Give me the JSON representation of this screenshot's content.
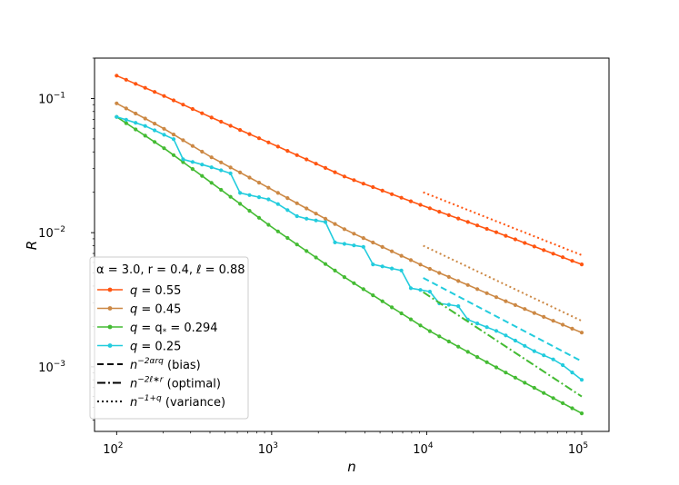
{
  "chart_data": {
    "type": "line",
    "title": "",
    "xlabel": "n",
    "ylabel": "R",
    "xscale": "log",
    "yscale": "log",
    "xlim": [
      72,
      150000
    ],
    "ylim": [
      0.00033,
      0.2
    ],
    "x_ticks": [
      {
        "value": 100,
        "base": "10",
        "exp": "2"
      },
      {
        "value": 1000,
        "base": "10",
        "exp": "3"
      },
      {
        "value": 10000,
        "base": "10",
        "exp": "4"
      },
      {
        "value": 100000,
        "base": "10",
        "exp": "5"
      }
    ],
    "y_ticks": [
      {
        "value": 0.1,
        "base": "10",
        "exp": "−1"
      },
      {
        "value": 0.01,
        "base": "10",
        "exp": "−2"
      },
      {
        "value": 0.001,
        "base": "10",
        "exp": "−3"
      }
    ],
    "legend_title": "α = 3.0, r = 0.4, ℓ = 0.88",
    "legend_position": "lower-left",
    "series": [
      {
        "name": "q = 0.55",
        "color": "#FF5511",
        "style": "line-marker",
        "x_start": 100,
        "x_end": 100000,
        "points": 50,
        "anchors": [
          [
            100,
            0.148
          ],
          [
            130,
            0.13
          ],
          [
            200,
            0.105
          ],
          [
            400,
            0.073
          ],
          [
            1000,
            0.046
          ],
          [
            3000,
            0.026
          ],
          [
            10000,
            0.0155
          ],
          [
            30000,
            0.0098
          ],
          [
            100000,
            0.0058
          ]
        ]
      },
      {
        "name": "q = 0.45",
        "color": "#CC8844",
        "style": "line-marker",
        "x_start": 100,
        "x_end": 100000,
        "points": 50,
        "anchors": [
          [
            100,
            0.092
          ],
          [
            200,
            0.06
          ],
          [
            400,
            0.037
          ],
          [
            1000,
            0.021
          ],
          [
            3000,
            0.0105
          ],
          [
            10000,
            0.0055
          ],
          [
            30000,
            0.0032
          ],
          [
            100000,
            0.0018
          ]
        ]
      },
      {
        "name": "q = q_* = 0.294",
        "color": "#44BB33",
        "style": "line-marker",
        "x_start": 100,
        "x_end": 100000,
        "points": 50,
        "anchors": [
          [
            100,
            0.073
          ],
          [
            200,
            0.043
          ],
          [
            400,
            0.024
          ],
          [
            1000,
            0.011
          ],
          [
            3000,
            0.0046
          ],
          [
            10000,
            0.0019
          ],
          [
            30000,
            0.00095
          ],
          [
            100000,
            0.00045
          ]
        ]
      },
      {
        "name": "q = 0.25",
        "color": "#22CCDD",
        "style": "line-marker",
        "x_start": 100,
        "x_end": 100000,
        "points": 50,
        "anchors": [
          [
            100,
            0.073
          ],
          [
            150,
            0.063
          ],
          [
            240,
            0.049
          ],
          [
            250,
            0.036
          ],
          [
            400,
            0.031
          ],
          [
            580,
            0.027
          ],
          [
            600,
            0.02
          ],
          [
            1000,
            0.0175
          ],
          [
            1500,
            0.013
          ],
          [
            2400,
            0.0118
          ],
          [
            2500,
            0.0085
          ],
          [
            4000,
            0.0078
          ],
          [
            4500,
            0.0058
          ],
          [
            7000,
            0.0052
          ],
          [
            7500,
            0.0039
          ],
          [
            11000,
            0.0036
          ],
          [
            11500,
            0.003
          ],
          [
            17000,
            0.0028
          ],
          [
            17500,
            0.0023
          ],
          [
            30000,
            0.0018
          ],
          [
            50000,
            0.0013
          ],
          [
            70000,
            0.0011
          ],
          [
            100000,
            0.0008
          ]
        ]
      },
      {
        "name": "n^{-2αrq} (bias)",
        "color": "#22CCDD",
        "style": "dashed",
        "points_xy": [
          [
            9500,
            0.0046
          ],
          [
            100000,
            0.0011
          ]
        ]
      },
      {
        "name": "n^{-2ℓ*r} (optimal)",
        "color": "#44BB33",
        "style": "dashdot",
        "points_xy": [
          [
            9500,
            0.0036
          ],
          [
            100000,
            0.0006
          ]
        ]
      },
      {
        "name": "n^{-1+q} (variance) q=0.55",
        "color": "#FF5511",
        "style": "dotted",
        "points_xy": [
          [
            9500,
            0.02
          ],
          [
            100000,
            0.0068
          ]
        ]
      },
      {
        "name": "n^{-1+q} (variance) q=0.45",
        "color": "#CC8844",
        "style": "dotted",
        "points_xy": [
          [
            9500,
            0.008
          ],
          [
            100000,
            0.0022
          ]
        ]
      }
    ],
    "legend_entries": [
      {
        "style": "line-marker",
        "color": "#FF5511",
        "lead": "q",
        "sub": "",
        "rest": " = 0.55"
      },
      {
        "style": "line-marker",
        "color": "#CC8844",
        "lead": "q",
        "sub": "",
        "rest": " = 0.45"
      },
      {
        "style": "line-marker",
        "color": "#44BB33",
        "lead": "q",
        "sub": "",
        "rest": " = q",
        "sub2": "*",
        "tail": " = 0.294"
      },
      {
        "style": "line-marker",
        "color": "#22CCDD",
        "lead": "q",
        "sub": "",
        "rest": " = 0.25"
      },
      {
        "style": "dashed",
        "color": "#000000",
        "lead": "n",
        "sup": "−2αrq",
        "rest": " (bias)"
      },
      {
        "style": "dashdot",
        "color": "#000000",
        "lead": "n",
        "sup": "−2ℓ∗r",
        "rest": " (optimal)"
      },
      {
        "style": "dotted",
        "color": "#000000",
        "lead": "n",
        "sup": "−1+q",
        "rest": " (variance)"
      }
    ]
  }
}
